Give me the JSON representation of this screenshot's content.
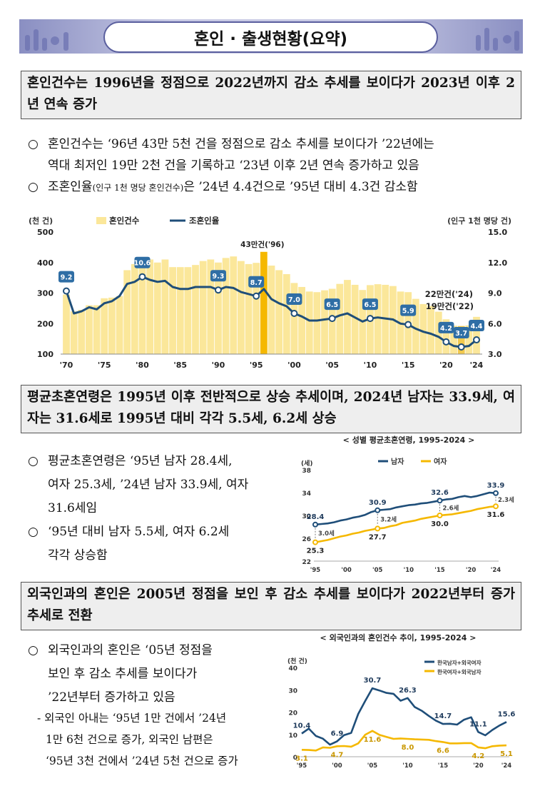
{
  "header": {
    "title": "혼인 · 출생현황(요약)"
  },
  "section1": {
    "box": "혼인건수는 1996년을 정점으로 2022년까지 감소 추세를 보이다가 2023년 이후 2년 연속 증가",
    "bullet_mark": "○",
    "bullet1_line1": "혼인건수는 ‘96년 43만 5천 건을 정점으로 감소 추세를 보이다가 ’22년에는",
    "bullet1_line2": "역대 최저인 19만 2천 건을 기록하고 ‘23년 이후 2년 연속 증가하고 있음",
    "bullet2_a": "조혼인율",
    "bullet2_small": "(인구 1천 명당 혼인건수)",
    "bullet2_b": "은 ’24년 4.4건으로 ’95년 대비 4.3건 감소함"
  },
  "section2": {
    "box": "평균초혼연령은 1995년 이후 전반적으로 상승 추세이며, 2024년 남자는 33.9세, 여자는 31.6세로 1995년 대비 각각 5.5세, 6.2세 상승",
    "bullet1_lines": [
      "평균초혼연령은 ‘95년 남자 28.4세,",
      "여자 25.3세, ’24년 남자 33.9세, 여자",
      "31.6세임"
    ],
    "bullet2_lines": [
      "‘95년 대비 남자 5.5세, 여자 6.2세",
      "각각 상승함"
    ]
  },
  "section3": {
    "box": "외국인과의 혼인은 2005년 정점을 보인 후 감소 추세를 보이다가 2022년부터 증가 추세로 전환",
    "bullet1_lines": [
      "외국인과의 혼인은 ‘05년 정점을",
      "보인 후 감소 추세를 보이다가",
      "’22년부터 증가하고 있음"
    ],
    "sub_lines": [
      "- 외국인 아내는 ‘95년 1만 건에서 ’24년",
      "1만 6천 건으로 증가, 외국인 남편은",
      "‘95년 3천 건에서 ’24년 5천 건으로 증가"
    ]
  },
  "chart_data": [
    {
      "type": "bar",
      "title": "",
      "ylabel_left": "(천 건)",
      "ylabel_right": "(인구 1천 명당 건)",
      "legend": [
        "혼인건수",
        "조혼인율"
      ],
      "ylim_left": [
        100,
        500
      ],
      "yticks_left": [
        "100",
        "200",
        "300",
        "400",
        "500"
      ],
      "ylim_right": [
        3.0,
        15.0
      ],
      "yticks_right": [
        "3.0",
        "6.0",
        "9.0",
        "12.0",
        "15.0"
      ],
      "xticks": [
        "'70",
        "'75",
        "'80",
        "'85",
        "'90",
        "'95",
        "'00",
        "'05",
        "'10",
        "'15",
        "'20",
        "'24"
      ],
      "x": [
        1970,
        1971,
        1972,
        1973,
        1974,
        1975,
        1976,
        1977,
        1978,
        1979,
        1980,
        1981,
        1982,
        1983,
        1984,
        1985,
        1986,
        1987,
        1988,
        1989,
        1990,
        1991,
        1992,
        1993,
        1994,
        1995,
        1996,
        1997,
        1998,
        1999,
        2000,
        2001,
        2002,
        2003,
        2004,
        2005,
        2006,
        2007,
        2008,
        2009,
        2010,
        2011,
        2012,
        2013,
        2014,
        2015,
        2016,
        2017,
        2018,
        2019,
        2020,
        2021,
        2022,
        2023,
        2024
      ],
      "marriages": [
        295,
        240,
        245,
        260,
        260,
        283,
        285,
        290,
        375,
        395,
        403,
        410,
        400,
        410,
        385,
        385,
        385,
        392,
        405,
        410,
        400,
        415,
        420,
        405,
        395,
        399,
        435,
        390,
        375,
        362,
        333,
        320,
        305,
        303,
        309,
        314,
        330,
        343,
        327,
        310,
        326,
        329,
        327,
        323,
        305,
        303,
        281,
        264,
        258,
        239,
        214,
        193,
        192,
        194,
        222
      ],
      "crude_rate": [
        9.2,
        7.0,
        7.2,
        7.6,
        7.4,
        8.0,
        8.2,
        8.7,
        9.9,
        10.1,
        10.6,
        10.3,
        10.1,
        10.2,
        9.6,
        9.4,
        9.4,
        9.6,
        9.6,
        9.6,
        9.3,
        9.6,
        9.5,
        9.1,
        8.9,
        8.7,
        9.4,
        8.4,
        8.0,
        7.7,
        7.0,
        6.7,
        6.3,
        6.3,
        6.4,
        6.5,
        6.8,
        7.0,
        6.6,
        6.2,
        6.5,
        6.6,
        6.5,
        6.4,
        6.0,
        5.9,
        5.5,
        5.2,
        5.0,
        4.7,
        4.2,
        3.8,
        3.7,
        3.8,
        4.4
      ],
      "rate_labels": {
        "1970": "9.2",
        "1980": "10.6",
        "1990": "9.3",
        "1995": "8.7",
        "2000": "7.0",
        "2005": "6.5",
        "2010": "6.5",
        "2015": "5.9",
        "2020": "4.2",
        "2022": "3.7",
        "2024": "4.4"
      },
      "annotations": [
        "43만건('96)",
        "22만건('24)",
        "19만건('22)"
      ]
    },
    {
      "type": "line",
      "title": "< 성별 평균초혼연령, 1995-2024 >",
      "ylabel": "(세)",
      "ylim": [
        22,
        38
      ],
      "yticks": [
        "22",
        "26",
        "30",
        "34",
        "38"
      ],
      "xticks": [
        "'95",
        "'00",
        "'05",
        "'10",
        "'15",
        "'20",
        "'24"
      ],
      "x": [
        1995,
        1996,
        1997,
        1998,
        1999,
        2000,
        2001,
        2002,
        2003,
        2004,
        2005,
        2006,
        2007,
        2008,
        2009,
        2010,
        2011,
        2012,
        2013,
        2014,
        2015,
        2016,
        2017,
        2018,
        2019,
        2020,
        2021,
        2022,
        2023,
        2024
      ],
      "series": [
        {
          "name": "남자",
          "color": "#1f4e79",
          "values": [
            28.4,
            28.5,
            28.6,
            28.8,
            29.1,
            29.3,
            29.6,
            29.8,
            30.1,
            30.6,
            30.9,
            31.0,
            31.1,
            31.4,
            31.6,
            31.8,
            31.9,
            32.1,
            32.2,
            32.4,
            32.6,
            32.8,
            32.9,
            33.2,
            33.4,
            33.2,
            33.4,
            33.7,
            34.0,
            33.9
          ]
        },
        {
          "name": "여자",
          "color": "#f5b800",
          "values": [
            25.3,
            25.5,
            25.7,
            26.0,
            26.3,
            26.5,
            26.8,
            27.0,
            27.3,
            27.5,
            27.7,
            27.8,
            28.1,
            28.3,
            28.7,
            28.9,
            29.1,
            29.4,
            29.6,
            29.8,
            30.0,
            30.1,
            30.2,
            30.4,
            30.6,
            30.8,
            31.1,
            31.3,
            31.5,
            31.6
          ]
        }
      ],
      "value_labels": [
        "28.4",
        "25.3",
        "30.9",
        "27.7",
        "32.6",
        "30.0",
        "33.9",
        "31.6"
      ],
      "gap_labels": [
        "3.0세",
        "3.2세",
        "2.6세",
        "2.3세"
      ],
      "legend": [
        "남자",
        "여자"
      ]
    },
    {
      "type": "line",
      "title": "< 외국인과의 혼인건수 추이, 1995-2024 >",
      "ylabel": "(천 건)",
      "ylim": [
        0,
        40
      ],
      "yticks": [
        "0",
        "10",
        "20",
        "30",
        "40"
      ],
      "xticks": [
        "'95",
        "'00",
        "'05",
        "'10",
        "'15",
        "'20",
        "'24"
      ],
      "x": [
        1995,
        1996,
        1997,
        1998,
        1999,
        2000,
        2001,
        2002,
        2003,
        2004,
        2005,
        2006,
        2007,
        2008,
        2009,
        2010,
        2011,
        2012,
        2013,
        2014,
        2015,
        2016,
        2017,
        2018,
        2019,
        2020,
        2021,
        2022,
        2023,
        2024
      ],
      "series": [
        {
          "name": "한국남자+외국여자",
          "color": "#1f4e79",
          "values": [
            10.4,
            12.6,
            9.3,
            8.1,
            5.4,
            6.9,
            9.7,
            10.7,
            19.2,
            25.1,
            30.7,
            29.7,
            28.6,
            28.2,
            25.1,
            26.3,
            22.3,
            20.6,
            18.3,
            16.2,
            14.7,
            14.8,
            14.4,
            16.6,
            17.7,
            11.1,
            9.6,
            12.0,
            14.0,
            15.6
          ]
        },
        {
          "name": "한국여자+외국남자",
          "color": "#f5b800",
          "values": [
            3.1,
            3.0,
            2.8,
            4.2,
            4.0,
            4.7,
            4.8,
            4.5,
            6.0,
            9.9,
            11.6,
            9.8,
            8.9,
            8.0,
            8.2,
            8.0,
            7.8,
            7.7,
            7.6,
            7.0,
            6.6,
            6.0,
            6.0,
            6.1,
            6.1,
            4.2,
            3.8,
            4.7,
            5.0,
            5.1
          ]
        }
      ],
      "value_labels": [
        "10.4",
        "3.1",
        "6.9",
        "4.7",
        "30.7",
        "11.6",
        "26.3",
        "8.0",
        "14.7",
        "6.6",
        "11.1",
        "4.2",
        "15.6",
        "5.1"
      ],
      "legend": [
        "한국남자+외국여자",
        "한국여자+외국남자"
      ]
    }
  ]
}
